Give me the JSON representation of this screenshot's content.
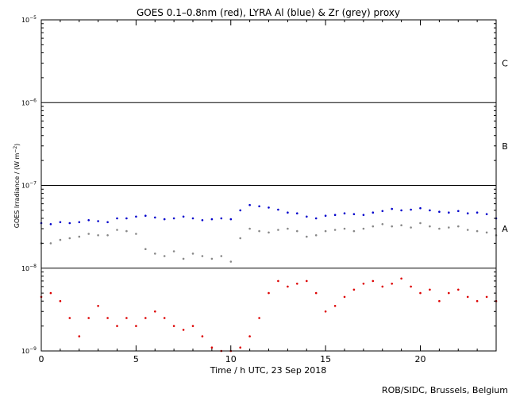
{
  "chart_data": {
    "type": "scatter",
    "title": "GOES 0.1–0.8nm (red), LYRA Al (blue) & Zr (grey) proxy",
    "xlabel": "Time / h UTC, 23 Sep 2018",
    "ylabel": "GOES Irradiance / (W m",
    "ylabel_exp": "−2",
    "ylabel_close": ")",
    "xlim": [
      0,
      24
    ],
    "ylim": [
      1e-09,
      1e-05
    ],
    "yscale": "log",
    "x_ticks": [
      0,
      5,
      10,
      15,
      20
    ],
    "y_ticks": [
      {
        "value": 1e-09,
        "base": "10",
        "exp": "−9"
      },
      {
        "value": 1e-08,
        "base": "10",
        "exp": "−8"
      },
      {
        "value": 1e-07,
        "base": "10",
        "exp": "−7"
      },
      {
        "value": 1e-06,
        "base": "10",
        "exp": "−6"
      },
      {
        "value": 1e-05,
        "base": "10",
        "exp": "−5"
      }
    ],
    "flare_classes": [
      {
        "label": "A",
        "value": 3e-08
      },
      {
        "label": "B",
        "value": 3e-07
      },
      {
        "label": "C",
        "value": 3e-06
      }
    ],
    "threshold_lines": [
      1e-08,
      1e-07,
      1e-06
    ],
    "series": [
      {
        "color": "#0000cc",
        "x": [
          0,
          0.5,
          1,
          1.5,
          2,
          2.5,
          3,
          3.5,
          4,
          4.5,
          5,
          5.5,
          6,
          6.5,
          7,
          7.5,
          8,
          8.5,
          9,
          9.5,
          10,
          10.5,
          11,
          11.5,
          12,
          12.5,
          13,
          13.5,
          14,
          14.5,
          15,
          15.5,
          16,
          16.5,
          17,
          17.5,
          18,
          18.5,
          19,
          19.5,
          20,
          20.5,
          21,
          21.5,
          22,
          22.5,
          23,
          23.5,
          24
        ],
        "y": [
          3.5e-08,
          3.4e-08,
          3.6e-08,
          3.5e-08,
          3.6e-08,
          3.8e-08,
          3.7e-08,
          3.6e-08,
          4e-08,
          4e-08,
          4.2e-08,
          4.3e-08,
          4.1e-08,
          3.9e-08,
          4e-08,
          4.2e-08,
          4e-08,
          3.8e-08,
          3.9e-08,
          4e-08,
          3.9e-08,
          5e-08,
          5.8e-08,
          5.6e-08,
          5.4e-08,
          5.1e-08,
          4.7e-08,
          4.6e-08,
          4.2e-08,
          4e-08,
          4.3e-08,
          4.4e-08,
          4.6e-08,
          4.5e-08,
          4.4e-08,
          4.7e-08,
          4.9e-08,
          5.2e-08,
          5e-08,
          5.1e-08,
          5.3e-08,
          5e-08,
          4.8e-08,
          4.7e-08,
          4.9e-08,
          4.6e-08,
          4.7e-08,
          4.5e-08,
          4e-08
        ]
      },
      {
        "color": "#888888",
        "x": [
          0,
          0.5,
          1,
          1.5,
          2,
          2.5,
          3,
          3.5,
          4,
          4.5,
          5,
          5.5,
          6,
          6.5,
          7,
          7.5,
          8,
          8.5,
          9,
          9.5,
          10,
          10.5,
          11,
          11.5,
          12,
          12.5,
          13,
          13.5,
          14,
          14.5,
          15,
          15.5,
          16,
          16.5,
          17,
          17.5,
          18,
          18.5,
          19,
          19.5,
          20,
          20.5,
          21,
          21.5,
          22,
          22.5,
          23,
          23.5,
          24
        ],
        "y": [
          2e-08,
          2e-08,
          2.2e-08,
          2.3e-08,
          2.4e-08,
          2.6e-08,
          2.5e-08,
          2.5e-08,
          2.9e-08,
          2.8e-08,
          2.6e-08,
          1.7e-08,
          1.5e-08,
          1.4e-08,
          1.6e-08,
          1.3e-08,
          1.5e-08,
          1.4e-08,
          1.3e-08,
          1.4e-08,
          1.2e-08,
          2.3e-08,
          3e-08,
          2.8e-08,
          2.7e-08,
          2.9e-08,
          3e-08,
          2.8e-08,
          2.4e-08,
          2.5e-08,
          2.8e-08,
          2.9e-08,
          3e-08,
          2.8e-08,
          3e-08,
          3.2e-08,
          3.4e-08,
          3.2e-08,
          3.3e-08,
          3.1e-08,
          3.5e-08,
          3.2e-08,
          3e-08,
          3.1e-08,
          3.2e-08,
          2.9e-08,
          2.8e-08,
          2.7e-08,
          2.5e-08
        ]
      },
      {
        "color": "#dd0000",
        "x": [
          0,
          0.5,
          1,
          1.5,
          2,
          2.5,
          3,
          3.5,
          4,
          4.5,
          5,
          5.5,
          6,
          6.5,
          7,
          7.5,
          8,
          8.5,
          9,
          9.5,
          10,
          10.5,
          11,
          11.5,
          12,
          12.5,
          13,
          13.5,
          14,
          14.5,
          15,
          15.5,
          16,
          16.5,
          17,
          17.5,
          18,
          18.5,
          19,
          19.5,
          20,
          20.5,
          21,
          21.5,
          22,
          22.5,
          23,
          23.5,
          24
        ],
        "y": [
          4.5e-09,
          5e-09,
          4e-09,
          2.5e-09,
          1.5e-09,
          2.5e-09,
          3.5e-09,
          2.5e-09,
          2e-09,
          2.5e-09,
          2e-09,
          2.5e-09,
          3e-09,
          2.5e-09,
          2e-09,
          1.8e-09,
          2e-09,
          1.5e-09,
          1.1e-09,
          1e-09,
          1e-09,
          1.1e-09,
          1.5e-09,
          2.5e-09,
          5e-09,
          7e-09,
          6e-09,
          6.5e-09,
          7e-09,
          5e-09,
          3e-09,
          3.5e-09,
          4.5e-09,
          5.5e-09,
          6.5e-09,
          7e-09,
          6e-09,
          6.5e-09,
          7.5e-09,
          6e-09,
          5e-09,
          5.5e-09,
          4e-09,
          5e-09,
          5.5e-09,
          4.5e-09,
          4e-09,
          4.5e-09,
          4e-09
        ]
      }
    ],
    "footer": "ROB/SIDC, Brussels, Belgium"
  }
}
